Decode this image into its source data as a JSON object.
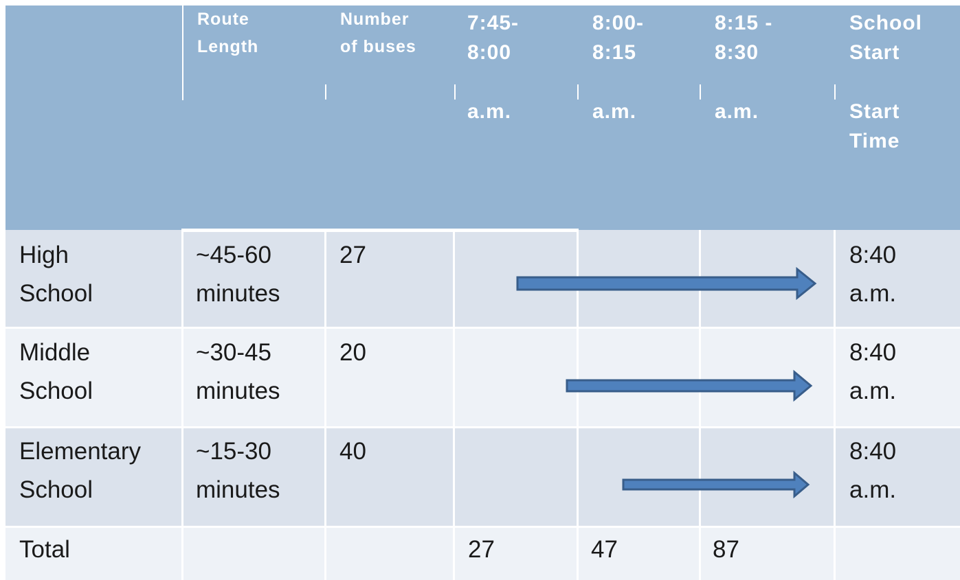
{
  "table": {
    "headers": {
      "route_length": [
        "Route",
        "Length"
      ],
      "num_buses": [
        "Number",
        "of buses"
      ],
      "t1": [
        "7:45-",
        "8:00",
        "a.m."
      ],
      "t2": [
        "8:00-",
        "8:15",
        "a.m."
      ],
      "t3": [
        "8:15 -",
        "8:30",
        "a.m."
      ],
      "school_start": [
        "School",
        "Start",
        "Start",
        "Time"
      ]
    },
    "rows": [
      {
        "school": [
          "High",
          "School"
        ],
        "route": [
          "~45-60",
          "minutes"
        ],
        "buses": "27",
        "start": [
          "8:40",
          "a.m."
        ]
      },
      {
        "school": [
          "Middle",
          "School"
        ],
        "route": [
          "~30-45",
          "minutes"
        ],
        "buses": "20",
        "start": [
          "8:40",
          "a.m."
        ]
      },
      {
        "school": [
          "Elementary",
          "School"
        ],
        "route": [
          "~15-30",
          "minutes"
        ],
        "buses": "40",
        "start": [
          "8:40",
          "a.m."
        ]
      }
    ],
    "total": {
      "label": "Total",
      "t1": "27",
      "t2": "47",
      "t3": "87"
    }
  },
  "colors": {
    "header": "#94b4d2",
    "row_dark": "#dbe2ec",
    "row_light": "#eef2f7",
    "arrow_fill": "#4f81bd",
    "arrow_stroke": "#385d8a"
  }
}
